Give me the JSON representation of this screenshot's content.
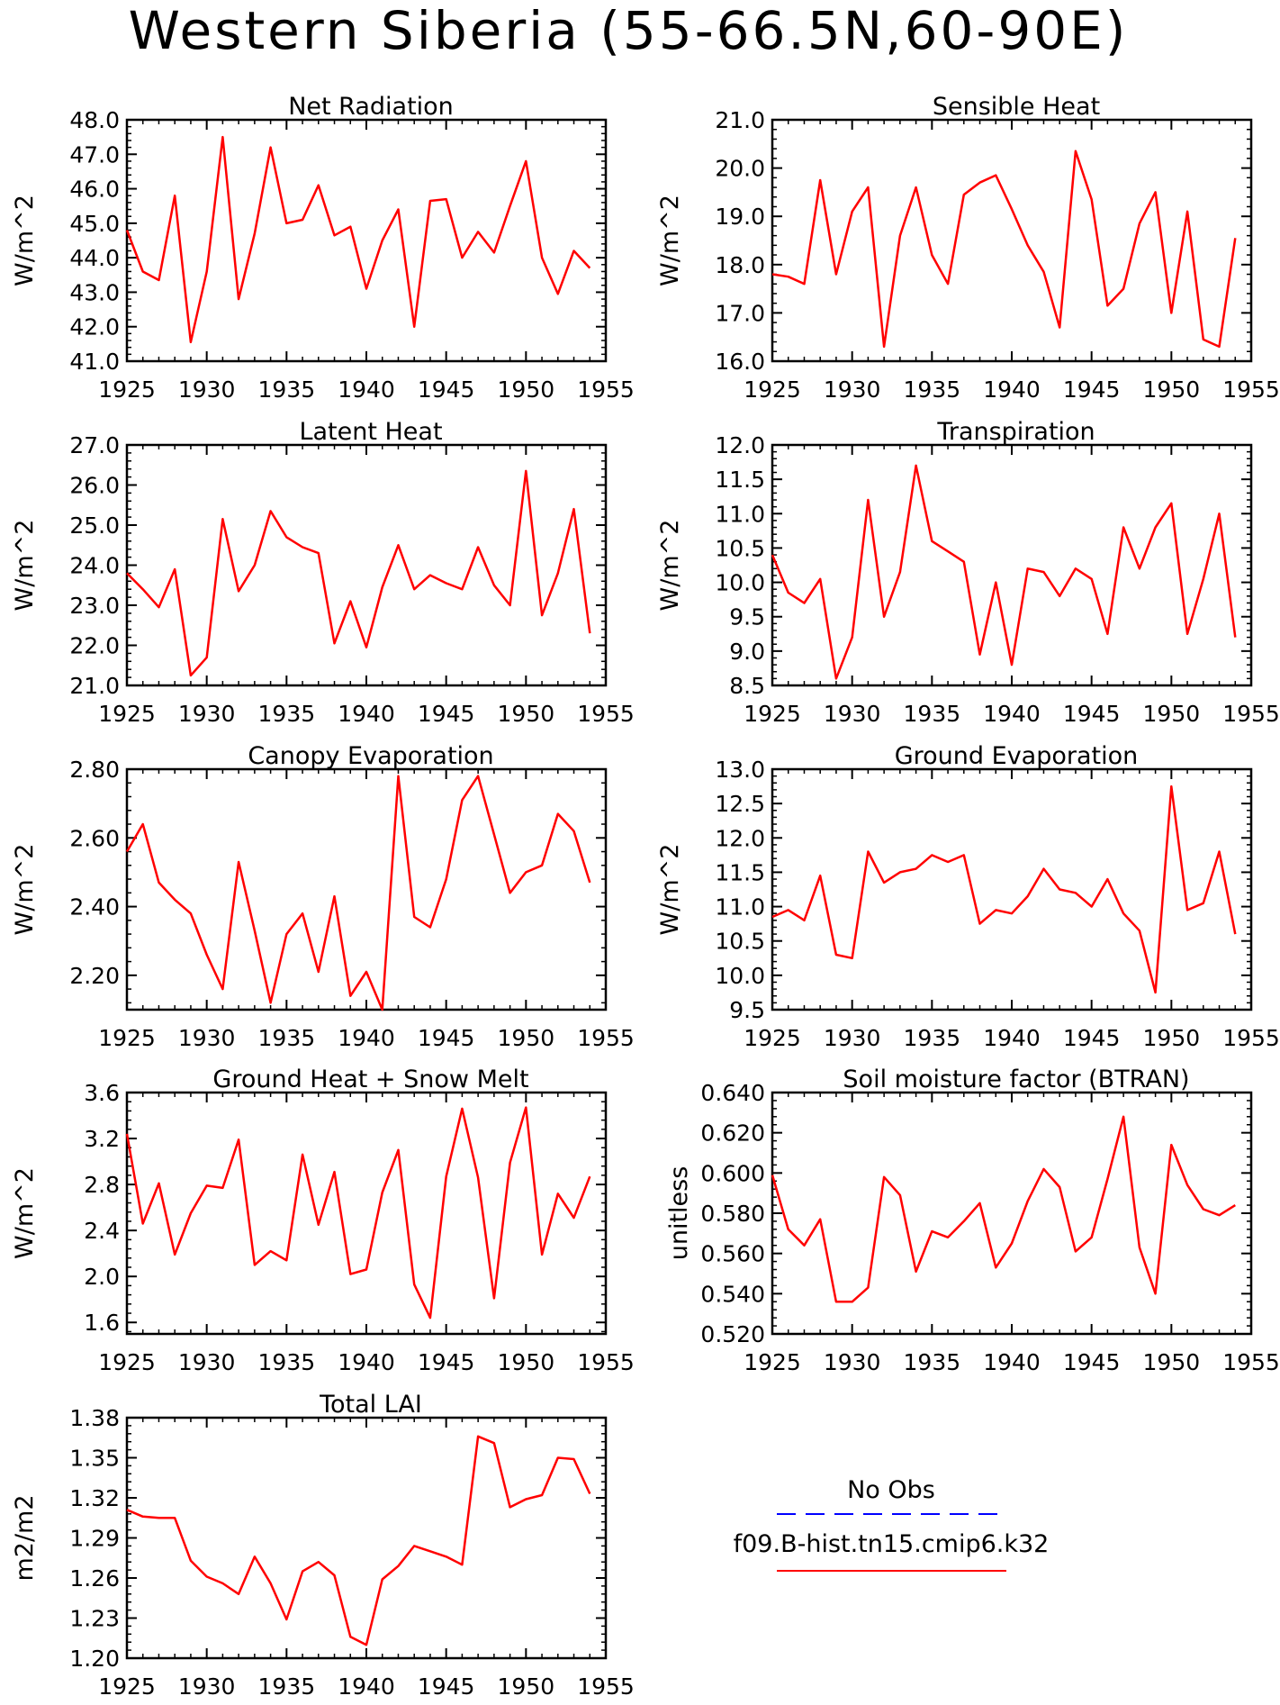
{
  "title": "Western Siberia (55-66.5N,60-90E)",
  "colors": {
    "model": "#ff0000",
    "obs": "#0000ff"
  },
  "legend": {
    "obs_label": "No Obs",
    "model_label": "f09.B-hist.tn15.cmip6.k32"
  },
  "x_ticks": [
    "1925",
    "1930",
    "1935",
    "1940",
    "1945",
    "1950",
    "1955"
  ],
  "chart_data": [
    {
      "type": "line",
      "title": "Net Radiation",
      "ylabel": "W/m^2",
      "xlim": [
        1925,
        1955
      ],
      "ylim": [
        41.0,
        48.0
      ],
      "y_ticks": [
        "41.0",
        "42.0",
        "43.0",
        "44.0",
        "45.0",
        "46.0",
        "47.0",
        "48.0"
      ],
      "x": [
        1925,
        1926,
        1927,
        1928,
        1929,
        1930,
        1931,
        1932,
        1933,
        1934,
        1935,
        1936,
        1937,
        1938,
        1939,
        1940,
        1941,
        1942,
        1943,
        1944,
        1945,
        1946,
        1947,
        1948,
        1949,
        1950,
        1951,
        1952,
        1953,
        1954
      ],
      "series": [
        {
          "values": [
            44.8,
            43.6,
            43.35,
            45.8,
            41.55,
            43.6,
            47.5,
            42.8,
            44.7,
            47.2,
            45.0,
            45.1,
            46.1,
            44.65,
            44.9,
            43.1,
            44.5,
            45.4,
            42.0,
            45.65,
            45.7,
            44.0,
            44.75,
            44.15,
            45.5,
            46.8,
            44.0,
            42.95,
            44.2,
            43.7
          ]
        }
      ]
    },
    {
      "type": "line",
      "title": "Sensible Heat",
      "ylabel": "W/m^2",
      "xlim": [
        1925,
        1955
      ],
      "ylim": [
        16.0,
        21.0
      ],
      "y_ticks": [
        "16.0",
        "17.0",
        "18.0",
        "19.0",
        "20.0",
        "21.0"
      ],
      "x": [
        1925,
        1926,
        1927,
        1928,
        1929,
        1930,
        1931,
        1932,
        1933,
        1934,
        1935,
        1936,
        1937,
        1938,
        1939,
        1940,
        1941,
        1942,
        1943,
        1944,
        1945,
        1946,
        1947,
        1948,
        1949,
        1950,
        1951,
        1952,
        1953,
        1954
      ],
      "series": [
        {
          "values": [
            17.8,
            17.75,
            17.6,
            19.75,
            17.8,
            19.1,
            19.6,
            16.3,
            18.6,
            19.6,
            18.2,
            17.6,
            19.45,
            19.7,
            19.85,
            19.15,
            18.4,
            17.85,
            16.7,
            20.35,
            19.35,
            17.15,
            17.5,
            18.85,
            19.5,
            17.0,
            19.1,
            16.45,
            16.3,
            18.55
          ]
        }
      ]
    },
    {
      "type": "line",
      "title": "Latent Heat",
      "ylabel": "W/m^2",
      "xlim": [
        1925,
        1955
      ],
      "ylim": [
        21.0,
        27.0
      ],
      "y_ticks": [
        "21.0",
        "22.0",
        "23.0",
        "24.0",
        "25.0",
        "26.0",
        "27.0"
      ],
      "x": [
        1925,
        1926,
        1927,
        1928,
        1929,
        1930,
        1931,
        1932,
        1933,
        1934,
        1935,
        1936,
        1937,
        1938,
        1939,
        1940,
        1941,
        1942,
        1943,
        1944,
        1945,
        1946,
        1947,
        1948,
        1949,
        1950,
        1951,
        1952,
        1953,
        1954
      ],
      "series": [
        {
          "values": [
            23.8,
            23.4,
            22.95,
            23.9,
            21.25,
            21.7,
            25.15,
            23.35,
            24.0,
            25.35,
            24.7,
            24.45,
            24.3,
            22.05,
            23.1,
            21.95,
            23.45,
            24.5,
            23.4,
            23.75,
            23.55,
            23.4,
            24.45,
            23.5,
            23.0,
            26.35,
            22.75,
            23.8,
            25.4,
            22.3
          ]
        }
      ]
    },
    {
      "type": "line",
      "title": "Transpiration",
      "ylabel": "W/m^2",
      "xlim": [
        1925,
        1955
      ],
      "ylim": [
        8.5,
        12.0
      ],
      "y_ticks": [
        "8.5",
        "9.0",
        "9.5",
        "10.0",
        "10.5",
        "11.0",
        "11.5",
        "12.0"
      ],
      "x": [
        1925,
        1926,
        1927,
        1928,
        1929,
        1930,
        1931,
        1932,
        1933,
        1934,
        1935,
        1936,
        1937,
        1938,
        1939,
        1940,
        1941,
        1942,
        1943,
        1944,
        1945,
        1946,
        1947,
        1948,
        1949,
        1950,
        1951,
        1952,
        1953,
        1954
      ],
      "series": [
        {
          "values": [
            10.4,
            9.85,
            9.7,
            10.05,
            8.6,
            9.2,
            11.2,
            9.5,
            10.15,
            11.7,
            10.6,
            10.45,
            10.3,
            8.95,
            10.0,
            8.8,
            10.2,
            10.15,
            9.8,
            10.2,
            10.05,
            9.25,
            10.8,
            10.2,
            10.8,
            11.15,
            9.25,
            10.05,
            11.0,
            9.2
          ]
        }
      ]
    },
    {
      "type": "line",
      "title": "Canopy Evaporation",
      "ylabel": "W/m^2",
      "xlim": [
        1925,
        1955
      ],
      "ylim": [
        2.1,
        2.8
      ],
      "y_ticks": [
        "2.20",
        "2.40",
        "2.60",
        "2.80"
      ],
      "x": [
        1925,
        1926,
        1927,
        1928,
        1929,
        1930,
        1931,
        1932,
        1933,
        1934,
        1935,
        1936,
        1937,
        1938,
        1939,
        1940,
        1941,
        1942,
        1943,
        1944,
        1945,
        1946,
        1947,
        1948,
        1949,
        1950,
        1951,
        1952,
        1953,
        1954
      ],
      "series": [
        {
          "values": [
            2.56,
            2.64,
            2.47,
            2.42,
            2.38,
            2.26,
            2.16,
            2.53,
            2.33,
            2.12,
            2.32,
            2.38,
            2.21,
            2.43,
            2.14,
            2.21,
            2.1,
            2.78,
            2.37,
            2.34,
            2.48,
            2.71,
            2.78,
            2.61,
            2.44,
            2.5,
            2.52,
            2.67,
            2.62,
            2.47
          ]
        }
      ]
    },
    {
      "type": "line",
      "title": "Ground Evaporation",
      "ylabel": "W/m^2",
      "xlim": [
        1925,
        1955
      ],
      "ylim": [
        9.5,
        13.0
      ],
      "y_ticks": [
        "9.5",
        "10.0",
        "10.5",
        "11.0",
        "11.5",
        "12.0",
        "12.5",
        "13.0"
      ],
      "x": [
        1925,
        1926,
        1927,
        1928,
        1929,
        1930,
        1931,
        1932,
        1933,
        1934,
        1935,
        1936,
        1937,
        1938,
        1939,
        1940,
        1941,
        1942,
        1943,
        1944,
        1945,
        1946,
        1947,
        1948,
        1949,
        1950,
        1951,
        1952,
        1953,
        1954
      ],
      "series": [
        {
          "values": [
            10.85,
            10.95,
            10.8,
            11.45,
            10.3,
            10.25,
            11.8,
            11.35,
            11.5,
            11.55,
            11.75,
            11.65,
            11.75,
            10.75,
            10.95,
            10.9,
            11.15,
            11.55,
            11.25,
            11.2,
            11.0,
            11.4,
            10.9,
            10.65,
            9.75,
            12.75,
            10.95,
            11.05,
            11.8,
            10.6
          ]
        }
      ]
    },
    {
      "type": "line",
      "title": "Ground Heat + Snow Melt",
      "ylabel": "W/m^2",
      "xlim": [
        1925,
        1955
      ],
      "ylim": [
        1.5,
        3.6
      ],
      "y_ticks": [
        "1.6",
        "2.0",
        "2.4",
        "2.8",
        "3.2",
        "3.6"
      ],
      "x": [
        1925,
        1926,
        1927,
        1928,
        1929,
        1930,
        1931,
        1932,
        1933,
        1934,
        1935,
        1936,
        1937,
        1938,
        1939,
        1940,
        1941,
        1942,
        1943,
        1944,
        1945,
        1946,
        1947,
        1948,
        1949,
        1950,
        1951,
        1952,
        1953,
        1954
      ],
      "series": [
        {
          "values": [
            3.24,
            2.46,
            2.81,
            2.19,
            2.55,
            2.79,
            2.77,
            3.19,
            2.1,
            2.22,
            2.14,
            3.06,
            2.45,
            2.91,
            2.02,
            2.06,
            2.73,
            3.1,
            1.93,
            1.64,
            2.87,
            3.46,
            2.86,
            1.81,
            2.99,
            3.47,
            2.19,
            2.72,
            2.51,
            2.87
          ]
        }
      ]
    },
    {
      "type": "line",
      "title": "Soil moisture factor (BTRAN)",
      "ylabel": "unitless",
      "xlim": [
        1925,
        1955
      ],
      "ylim": [
        0.52,
        0.64
      ],
      "y_ticks": [
        "0.520",
        "0.540",
        "0.560",
        "0.580",
        "0.600",
        "0.620",
        "0.640"
      ],
      "x": [
        1925,
        1926,
        1927,
        1928,
        1929,
        1930,
        1931,
        1932,
        1933,
        1934,
        1935,
        1936,
        1937,
        1938,
        1939,
        1940,
        1941,
        1942,
        1943,
        1944,
        1945,
        1946,
        1947,
        1948,
        1949,
        1950,
        1951,
        1952,
        1953,
        1954
      ],
      "series": [
        {
          "values": [
            0.599,
            0.572,
            0.564,
            0.577,
            0.536,
            0.536,
            0.543,
            0.598,
            0.589,
            0.551,
            0.571,
            0.568,
            0.576,
            0.585,
            0.553,
            0.565,
            0.586,
            0.602,
            0.593,
            0.561,
            0.568,
            0.597,
            0.628,
            0.563,
            0.54,
            0.614,
            0.594,
            0.582,
            0.579,
            0.584
          ]
        }
      ]
    },
    {
      "type": "line",
      "title": "Total LAI",
      "ylabel": "m2/m2",
      "xlim": [
        1925,
        1955
      ],
      "ylim": [
        1.2,
        1.38
      ],
      "y_ticks": [
        "1.20",
        "1.23",
        "1.26",
        "1.29",
        "1.32",
        "1.35",
        "1.38"
      ],
      "x": [
        1925,
        1926,
        1927,
        1928,
        1929,
        1930,
        1931,
        1932,
        1933,
        1934,
        1935,
        1936,
        1937,
        1938,
        1939,
        1940,
        1941,
        1942,
        1943,
        1944,
        1945,
        1946,
        1947,
        1948,
        1949,
        1950,
        1951,
        1952,
        1953,
        1954
      ],
      "series": [
        {
          "values": [
            1.311,
            1.306,
            1.305,
            1.305,
            1.273,
            1.261,
            1.256,
            1.248,
            1.276,
            1.256,
            1.229,
            1.265,
            1.272,
            1.262,
            1.216,
            1.21,
            1.259,
            1.269,
            1.284,
            1.28,
            1.276,
            1.27,
            1.366,
            1.361,
            1.313,
            1.319,
            1.322,
            1.35,
            1.349,
            1.323
          ]
        }
      ]
    }
  ]
}
